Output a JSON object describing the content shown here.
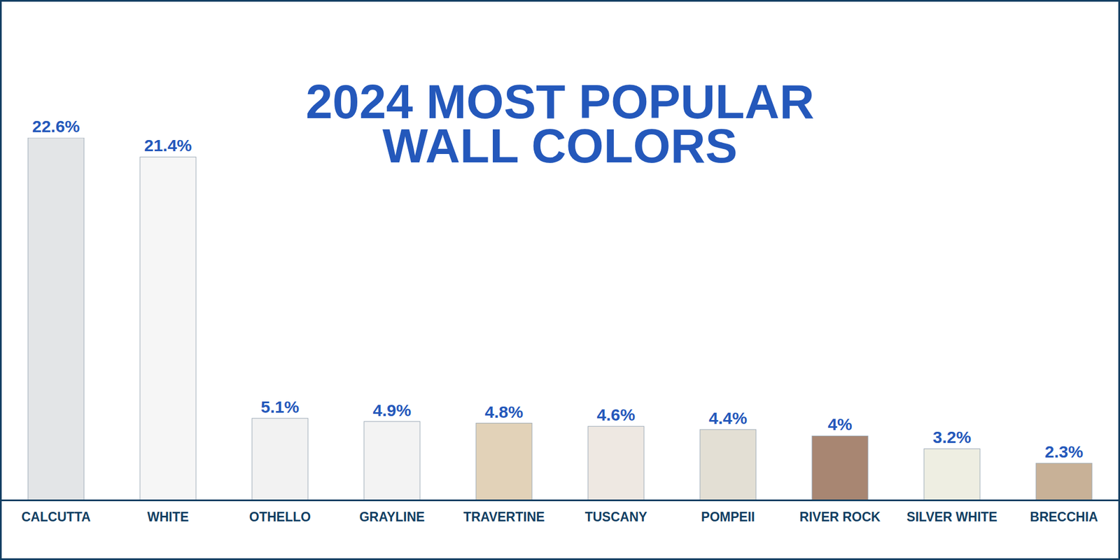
{
  "chart_data": {
    "type": "bar",
    "title": "2024 MOST POPULAR WALL COLORS",
    "categories": [
      "CALCUTTA",
      "WHITE",
      "OTHELLO",
      "GRAYLINE",
      "TRAVERTINE",
      "TUSCANY",
      "POMPEII",
      "RIVER ROCK",
      "SILVER WHITE",
      "BRECCHIA"
    ],
    "values": [
      22.6,
      21.4,
      5.1,
      4.9,
      4.8,
      4.6,
      4.4,
      4,
      3.2,
      2.3
    ],
    "value_labels": [
      "22.6%",
      "21.4%",
      "5.1%",
      "4.9%",
      "4.8%",
      "4.6%",
      "4.4%",
      "4%",
      "3.2%",
      "2.3%"
    ],
    "colors": [
      "#e3e5e7",
      "#f6f6f6",
      "#f2f2f2",
      "#f3f3f3",
      "#e2d2b8",
      "#eee8e2",
      "#e3dfd4",
      "#a88672",
      "#eeeee2",
      "#c8b197"
    ],
    "ylim": [
      0,
      22.6
    ],
    "data_labels": true,
    "tick_labels": "x"
  }
}
